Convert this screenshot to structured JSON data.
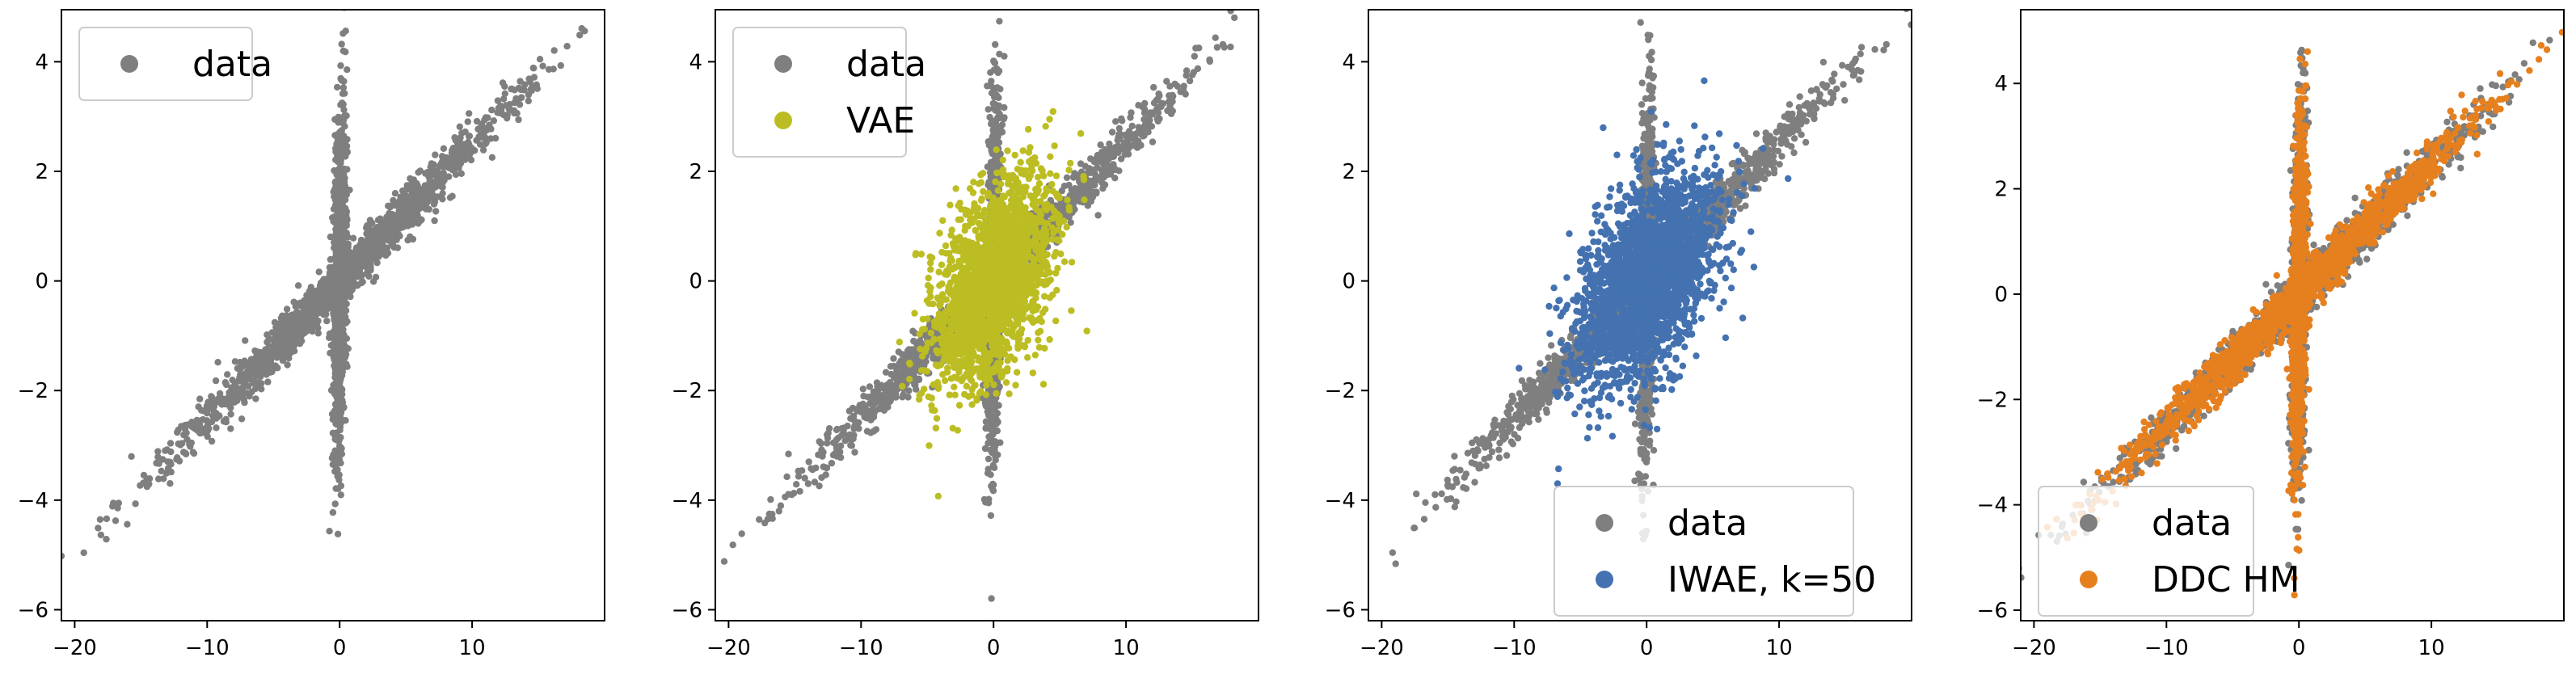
{
  "chart_data": [
    {
      "type": "scatter",
      "xlim": [
        -21.0,
        20.0
      ],
      "ylim": [
        -6.2,
        4.95
      ],
      "xticks": [
        -20,
        -10,
        0,
        10
      ],
      "yticks": [
        -6,
        -4,
        -2,
        0,
        2,
        4
      ],
      "xtick_labels": [
        "−20",
        "−10",
        "0",
        "10"
      ],
      "ytick_labels": [
        "−6",
        "−4",
        "−2",
        "0",
        "2",
        "4"
      ],
      "grid": false,
      "legend_position": "upper-left",
      "series": [
        {
          "name": "data",
          "color": "#7f7f7f",
          "distribution": "x-shape",
          "n": 2600
        }
      ]
    },
    {
      "type": "scatter",
      "xlim": [
        -21.0,
        20.0
      ],
      "ylim": [
        -6.2,
        4.95
      ],
      "xticks": [
        -20,
        -10,
        0,
        10
      ],
      "yticks": [
        -6,
        -4,
        -2,
        0,
        2,
        4
      ],
      "xtick_labels": [
        "−20",
        "−10",
        "0",
        "10"
      ],
      "ytick_labels": [
        "−6",
        "−4",
        "−2",
        "0",
        "2",
        "4"
      ],
      "grid": false,
      "legend_position": "upper-left",
      "series": [
        {
          "name": "data",
          "color": "#7f7f7f",
          "distribution": "x-shape",
          "n": 2600
        },
        {
          "name": "VAE",
          "color": "#bcbd22",
          "distribution": "gaussian",
          "center": [
            0,
            0
          ],
          "sx": 2.2,
          "sy": 0.9,
          "rho": 0.45,
          "n": 2200
        }
      ]
    },
    {
      "type": "scatter",
      "xlim": [
        -21.0,
        20.0
      ],
      "ylim": [
        -6.2,
        4.95
      ],
      "xticks": [
        -20,
        -10,
        0,
        10
      ],
      "yticks": [
        -6,
        -4,
        -2,
        0,
        2,
        4
      ],
      "xtick_labels": [
        "−20",
        "−10",
        "0",
        "10"
      ],
      "ytick_labels": [
        "−6",
        "−4",
        "−2",
        "0",
        "2",
        "4"
      ],
      "grid": false,
      "legend_position": "lower-right",
      "series": [
        {
          "name": "data",
          "color": "#7f7f7f",
          "distribution": "x-shape",
          "n": 2600
        },
        {
          "name": "IWAE, k=50",
          "color": "#4472b0",
          "distribution": "gaussian",
          "center": [
            0,
            0
          ],
          "sx": 2.6,
          "sy": 1.0,
          "rho": 0.5,
          "n": 2400
        }
      ]
    },
    {
      "type": "scatter",
      "xlim": [
        -21.0,
        20.0
      ],
      "ylim": [
        -6.2,
        5.4
      ],
      "xticks": [
        -20,
        -10,
        0,
        10
      ],
      "yticks": [
        -6,
        -4,
        -2,
        0,
        2,
        4
      ],
      "xtick_labels": [
        "−20",
        "−10",
        "0",
        "10"
      ],
      "ytick_labels": [
        "−6",
        "−4",
        "−2",
        "0",
        "2",
        "4"
      ],
      "grid": false,
      "legend_position": "lower-left",
      "series": [
        {
          "name": "data",
          "color": "#7f7f7f",
          "distribution": "x-shape",
          "n": 2600
        },
        {
          "name": "DDC HM",
          "color": "#e6801f",
          "distribution": "x-shape",
          "n": 2600
        }
      ]
    }
  ]
}
